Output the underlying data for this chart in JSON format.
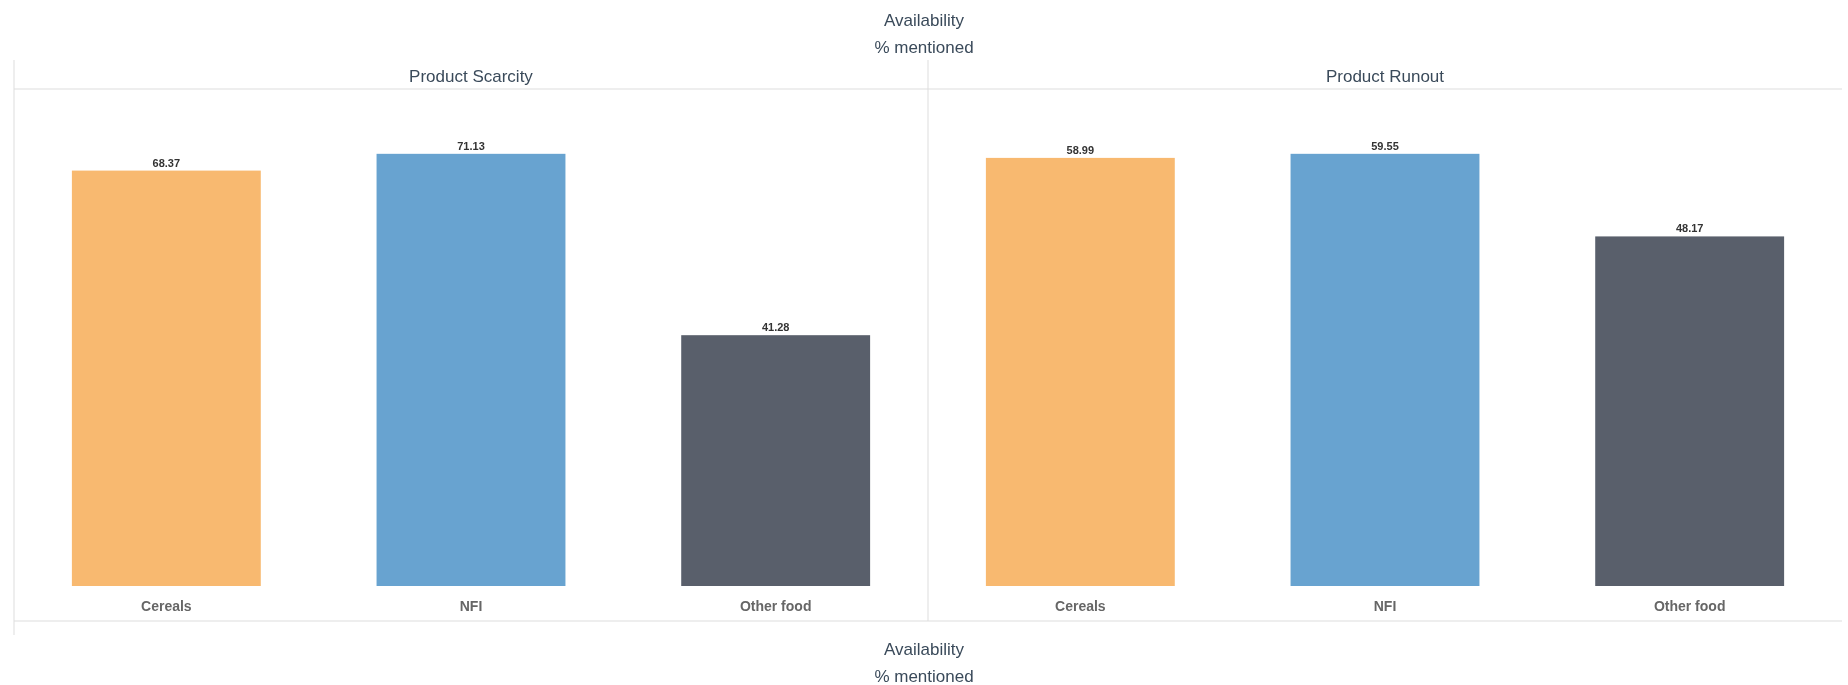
{
  "chart_data": [
    {
      "type": "bar",
      "title": "Product Scarcity",
      "categories": [
        "Cereals",
        "NFI",
        "Other food"
      ],
      "values": [
        68.37,
        71.13,
        41.28
      ],
      "colors": [
        "#f8b970",
        "#68a3d0",
        "#595f6b"
      ],
      "data_labels": true,
      "annotations": [
        "Availability",
        "% mentioned",
        "Availability",
        "% mentioned"
      ]
    },
    {
      "type": "bar",
      "title": "Product Runout",
      "categories": [
        "Cereals",
        "NFI",
        "Other food"
      ],
      "values": [
        58.99,
        59.55,
        48.17
      ],
      "colors": [
        "#f8b970",
        "#68a3d0",
        "#595f6b"
      ],
      "data_labels": true
    }
  ]
}
